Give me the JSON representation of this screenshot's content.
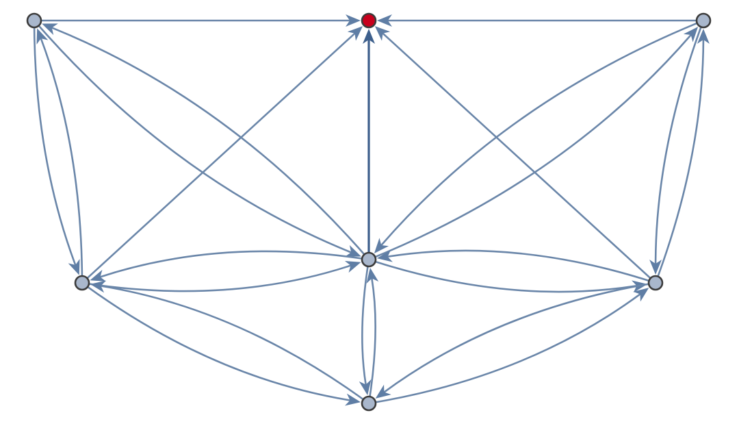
{
  "diagram": {
    "type": "directed-graph",
    "colors": {
      "edge": "#6a86a9",
      "edge_emphasis": "#3d5f8c",
      "arrowhead": "#5f7ea5",
      "node_fill": "#a9b7cc",
      "node_stroke": "#3b3b3b",
      "highlight_node_fill": "#c8001c"
    },
    "nodes": [
      {
        "id": "top_left",
        "highlighted": false
      },
      {
        "id": "top_center",
        "highlighted": true
      },
      {
        "id": "top_right",
        "highlighted": false
      },
      {
        "id": "mid_left",
        "highlighted": false
      },
      {
        "id": "center",
        "highlighted": false
      },
      {
        "id": "mid_right",
        "highlighted": false
      },
      {
        "id": "bottom",
        "highlighted": false
      }
    ],
    "edges": [
      {
        "from": "top_left",
        "to": "top_center"
      },
      {
        "from": "top_right",
        "to": "top_center"
      },
      {
        "from": "center",
        "to": "top_center",
        "emphasis": true
      },
      {
        "from": "mid_left",
        "to": "top_center"
      },
      {
        "from": "mid_right",
        "to": "top_center"
      },
      {
        "from": "top_left",
        "to": "mid_left"
      },
      {
        "from": "mid_left",
        "to": "top_left"
      },
      {
        "from": "top_left",
        "to": "center"
      },
      {
        "from": "center",
        "to": "top_left"
      },
      {
        "from": "top_right",
        "to": "mid_right"
      },
      {
        "from": "mid_right",
        "to": "top_right"
      },
      {
        "from": "center",
        "to": "top_right"
      },
      {
        "from": "top_right",
        "to": "center"
      },
      {
        "from": "mid_left",
        "to": "center"
      },
      {
        "from": "center",
        "to": "mid_left"
      },
      {
        "from": "mid_right",
        "to": "center"
      },
      {
        "from": "center",
        "to": "mid_right"
      },
      {
        "from": "center",
        "to": "bottom"
      },
      {
        "from": "bottom",
        "to": "center"
      },
      {
        "from": "mid_left",
        "to": "bottom"
      },
      {
        "from": "bottom",
        "to": "mid_left"
      },
      {
        "from": "mid_right",
        "to": "bottom"
      },
      {
        "from": "bottom",
        "to": "mid_right"
      }
    ]
  }
}
